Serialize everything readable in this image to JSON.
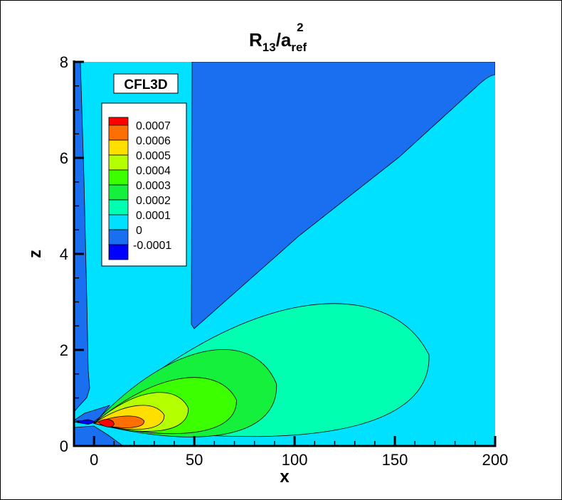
{
  "chart_data": {
    "type": "contour",
    "title": {
      "main": "R",
      "sub1": "13",
      "slash": "/a",
      "sub2": "ref",
      "sup": "2"
    },
    "xlabel": "x",
    "ylabel": "z",
    "xlim": [
      -10,
      200
    ],
    "ylim": [
      0,
      8
    ],
    "xticks": [
      0,
      50,
      100,
      150,
      200
    ],
    "xtick_labels": [
      "0",
      "50",
      "100",
      "150",
      "200"
    ],
    "yticks": [
      0,
      2,
      4,
      6,
      8
    ],
    "ytick_labels": [
      "0",
      "2",
      "4",
      "6",
      "8"
    ],
    "annotation": "CFL3D",
    "legend": {
      "placement": "top-left",
      "levels": [
        "0.0007",
        "0.0006",
        "0.0005",
        "0.0004",
        "0.0003",
        "0.0002",
        "0.0001",
        "0",
        "-0.0001"
      ],
      "colors": [
        "#ff0000",
        "#ff6e00",
        "#ffdf00",
        "#b4ff00",
        "#3cff00",
        "#14f03c",
        "#00ffb0",
        "#00e1ff",
        "#1a6ef0",
        "#0000ff"
      ]
    },
    "regions": [
      {
        "level": "0.0001",
        "description_level": "background",
        "color": "#00e1ff"
      },
      {
        "level": "0",
        "color": "#1a6ef0"
      },
      {
        "level": "0.0002",
        "x_extent": [
          0,
          167
        ],
        "z_max": 3.25
      },
      {
        "level": "0.0003",
        "x_extent": [
          0,
          91
        ],
        "z_max": 2.2
      },
      {
        "level": "0.0004",
        "x_extent": [
          0,
          71
        ],
        "z_max": 1.55
      },
      {
        "level": "0.0005",
        "x_extent": [
          0,
          47
        ],
        "z_max": 1.2
      },
      {
        "level": "0.0006",
        "x_extent": [
          0,
          35
        ],
        "z_max": 0.9
      },
      {
        "level": "0.0007",
        "x_extent": [
          0,
          25
        ],
        "z_max": 0.65
      },
      {
        "level": "-0.0001",
        "x_extent": [
          -10,
          0
        ],
        "z_max": 0.55
      }
    ]
  }
}
